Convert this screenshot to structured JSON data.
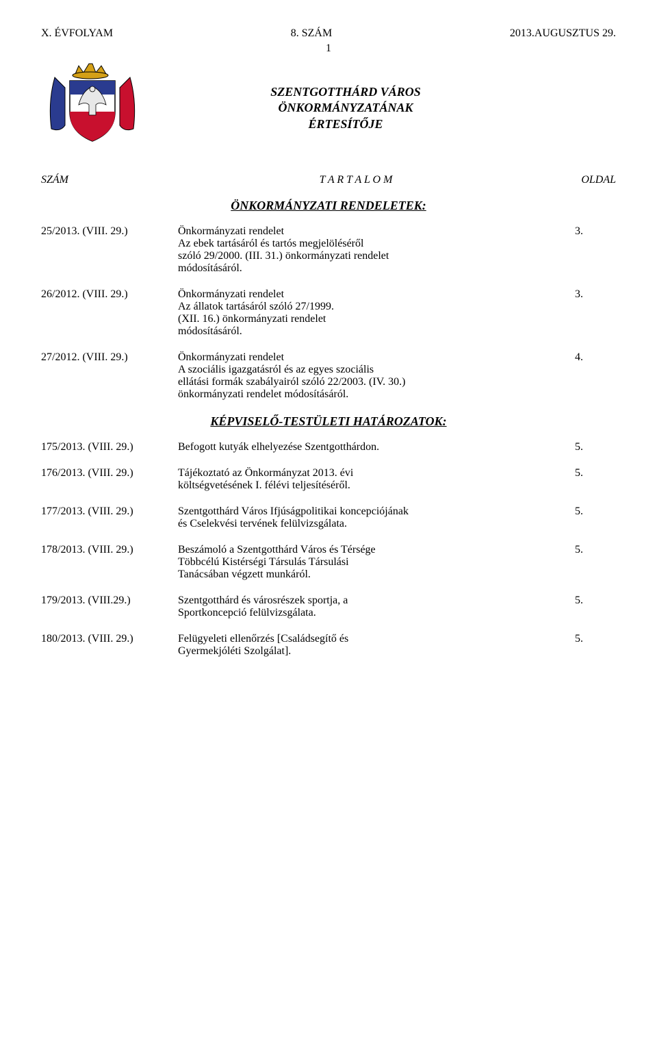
{
  "header": {
    "volume": "X. ÉVFOLYAM",
    "issue": "8. SZÁM",
    "date": "2013.AUGUSZTUS 29.",
    "page_number": "1"
  },
  "title": {
    "line1": "SZENTGOTTHÁRD VÁROS",
    "line2": "ÖNKORMÁNYZATÁNAK",
    "line3": "ÉRTESÍTŐJE"
  },
  "crest": {
    "shield_top": "#2a3b8f",
    "shield_mid": "#c8102e",
    "shield_bottom": "#ffffff",
    "crown": "#d4a017",
    "eagle": "#e8e8e8",
    "outline": "#000000"
  },
  "column_labels": {
    "szam": "SZÁM",
    "tartalom": "T A R T A L O M",
    "oldal": "OLDAL"
  },
  "sections": {
    "rendeletek": "ÖNKORMÁNYZATI RENDELETEK:",
    "hatarozatok": "KÉPVISELŐ-TESTÜLETI HATÁROZATOK:"
  },
  "rendeletek": [
    {
      "num": "25/2013. (VIII. 29.)",
      "text": "Önkormányzati rendelet\nAz ebek tartásáról és tartós megjelöléséről\nszóló 29/2000. (III. 31.) önkormányzati rendelet\nmódosításáról.",
      "page": "3."
    },
    {
      "num": "26/2012. (VIII. 29.)",
      "text": "Önkormányzati rendelet\nAz állatok tartásáról szóló 27/1999.\n(XII. 16.) önkormányzati rendelet\nmódosításáról.",
      "page": "3."
    },
    {
      "num": "27/2012. (VIII. 29.)",
      "text": "Önkormányzati rendelet\nA szociális igazgatásról és az egyes szociális\nellátási formák szabályairól szóló 22/2003. (IV. 30.)\nönkormányzati rendelet módosításáról.",
      "page": "4."
    }
  ],
  "hatarozatok": [
    {
      "num": "175/2013. (VIII. 29.)",
      "text": "Befogott kutyák elhelyezése Szentgotthárdon.",
      "page": "5."
    },
    {
      "num": "176/2013. (VIII. 29.)",
      "text": "Tájékoztató az Önkormányzat 2013. évi\nköltségvetésének I. félévi teljesítéséről.",
      "page": "5."
    },
    {
      "num": "177/2013. (VIII. 29.)",
      "text": "Szentgotthárd Város Ifjúságpolitikai  koncepciójának\nés Cselekvési tervének  felülvizsgálata.",
      "page": "5."
    },
    {
      "num": "178/2013. (VIII. 29.)",
      "text": "Beszámoló a Szentgotthárd Város és Térsége\nTöbbcélú Kistérségi Társulás Társulási\nTanácsában végzett munkáról.",
      "page": "5."
    },
    {
      "num": "179/2013. (VIII.29.)",
      "text": "Szentgotthárd  és városrészek sportja, a\nSportkoncepció felülvizsgálata.",
      "page": "5."
    },
    {
      "num": "180/2013. (VIII. 29.)",
      "text": "Felügyeleti ellenőrzés [Családsegítő és\nGyermekjóléti Szolgálat].",
      "page": "5."
    }
  ]
}
